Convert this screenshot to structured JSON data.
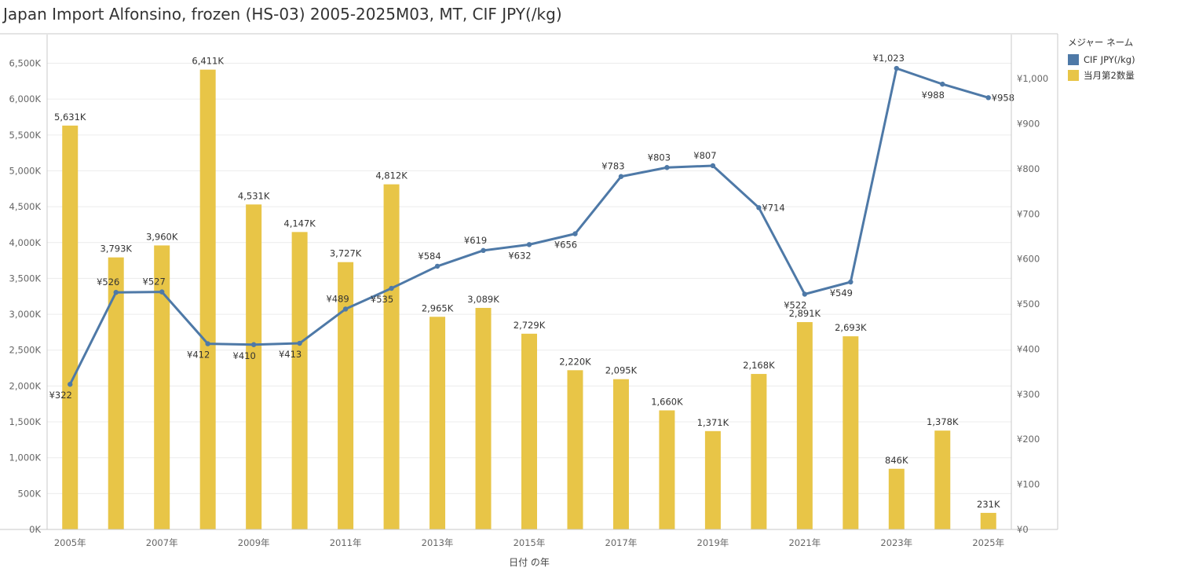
{
  "title": "Japan Import Alfonsino, frozen (HS-03) 2005-2025M03, MT, CIF JPY(/kg)",
  "legend": {
    "title": "メジャー ネーム",
    "items": [
      {
        "label": "CIF JPY(/kg)",
        "color": "#4e79a7"
      },
      {
        "label": "当月第2数量",
        "color": "#e8c547"
      }
    ]
  },
  "chart_data": {
    "type": "bar",
    "xlabel": "日付 の年",
    "categories": [
      "2005",
      "2006",
      "2007",
      "2008",
      "2009",
      "2010",
      "2011",
      "2012",
      "2013",
      "2014",
      "2015",
      "2016",
      "2017",
      "2018",
      "2019",
      "2020",
      "2021",
      "2022",
      "2023",
      "2024",
      "2025"
    ],
    "x_tick_labels": [
      "2005年",
      "2007年",
      "2009年",
      "2011年",
      "2013年",
      "2015年",
      "2017年",
      "2019年",
      "2021年",
      "2023年",
      "2025年"
    ],
    "y_left": {
      "ylim": [
        0,
        6900
      ],
      "ticks": [
        0,
        500,
        1000,
        1500,
        2000,
        2500,
        3000,
        3500,
        4000,
        4500,
        5000,
        5500,
        6000,
        6500
      ],
      "tick_labels": [
        "0K",
        "500K",
        "1,000K",
        "1,500K",
        "2,000K",
        "2,500K",
        "3,000K",
        "3,500K",
        "4,000K",
        "4,500K",
        "5,000K",
        "5,500K",
        "6,000K",
        "6,500K"
      ]
    },
    "y_right": {
      "ylim": [
        0,
        1098
      ],
      "ticks": [
        0,
        100,
        200,
        300,
        400,
        500,
        600,
        700,
        800,
        900,
        1000
      ],
      "tick_labels": [
        "¥0",
        "¥100",
        "¥200",
        "¥300",
        "¥400",
        "¥500",
        "¥600",
        "¥700",
        "¥800",
        "¥900",
        "¥1,000"
      ]
    },
    "series": [
      {
        "name": "当月第2数量",
        "type": "bar",
        "axis": "left",
        "color": "#e8c547",
        "values": [
          5631,
          3793,
          3960,
          6411,
          4531,
          4147,
          3727,
          4812,
          2965,
          3089,
          2729,
          2220,
          2095,
          1660,
          1371,
          2168,
          2891,
          2693,
          846,
          1378,
          231
        ],
        "labels": [
          "5,631K",
          "3,793K",
          "3,960K",
          "6,411K",
          "4,531K",
          "4,147K",
          "3,727K",
          "4,812K",
          "2,965K",
          "3,089K",
          "2,729K",
          "2,220K",
          "2,095K",
          "1,660K",
          "1,371K",
          "2,168K",
          "2,891K",
          "2,693K",
          "846K",
          "1,378K",
          "231K"
        ]
      },
      {
        "name": "CIF JPY(/kg)",
        "type": "line",
        "axis": "right",
        "color": "#4e79a7",
        "values": [
          322,
          526,
          527,
          412,
          410,
          413,
          489,
          535,
          584,
          619,
          632,
          656,
          783,
          803,
          807,
          714,
          522,
          549,
          1023,
          988,
          958
        ],
        "labels": [
          "¥322",
          "¥526",
          "¥527",
          "¥412",
          "¥410",
          "¥413",
          "¥489",
          "¥535",
          "¥584",
          "¥619",
          "¥632",
          "¥656",
          "¥783",
          "¥803",
          "¥807",
          "¥714",
          "¥522",
          "¥549",
          "¥1,023",
          "¥988",
          "¥958"
        ],
        "label_pos": [
          "below",
          "above",
          "above",
          "below",
          "below",
          "below",
          "above",
          "below",
          "above",
          "above",
          "below",
          "below",
          "above",
          "above",
          "above",
          "right",
          "below",
          "below",
          "above",
          "below",
          "right"
        ]
      }
    ],
    "grid": true
  }
}
